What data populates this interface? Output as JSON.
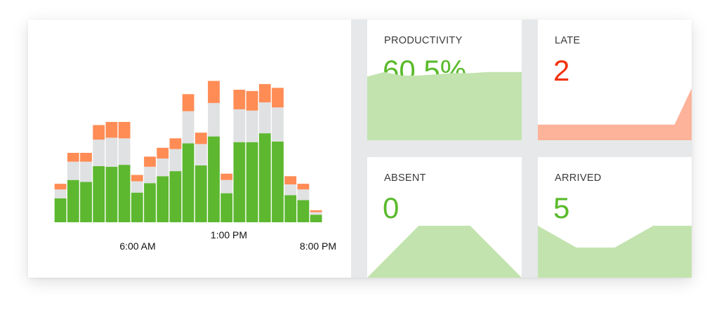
{
  "chart_data": {
    "type": "bar",
    "stacked": true,
    "x_tick_labels": [
      "6:00 AM",
      "1:00 PM",
      "8:00 PM"
    ],
    "series": [
      {
        "color": "#5db830",
        "values": [
          38,
          67,
          64,
          89,
          88,
          91,
          47,
          62,
          73,
          81,
          125,
          90,
          136,
          46,
          127,
          127,
          141,
          128,
          43,
          35,
          12
        ]
      },
      {
        "color": "#e0e1e2",
        "values": [
          14,
          29,
          32,
          42,
          46,
          42,
          18,
          26,
          28,
          35,
          51,
          34,
          53,
          21,
          52,
          50,
          49,
          54,
          17,
          17,
          4
        ]
      },
      {
        "color": "#ff8c55",
        "values": [
          9,
          14,
          14,
          23,
          25,
          26,
          10,
          16,
          17,
          17,
          27,
          18,
          35,
          10,
          31,
          31,
          29,
          31,
          13,
          9,
          3
        ]
      }
    ],
    "colors": {
      "green": "#5db830",
      "gray": "#e0e1e2",
      "orange": "#ff8c55"
    }
  },
  "stats": {
    "productivity": {
      "label": "PRODUCTIVITY",
      "value": "60.5%",
      "color": "#5aba2c",
      "area_color": "#c2e3ae",
      "trend": [
        0.56,
        0.6,
        0.57,
        0.57,
        0.58,
        0.59,
        0.59,
        0.6,
        0.6,
        0.6
      ]
    },
    "late": {
      "label": "LATE",
      "value": "2",
      "color": "#f2320e",
      "area_color": "#fdb29a",
      "trend": [
        0.3,
        0.3,
        0.3,
        0.3,
        0.3,
        0.3,
        0.3,
        0.3,
        0.3,
        1.0
      ]
    },
    "absent": {
      "label": "ABSENT",
      "value": "0",
      "color": "#5aba2c",
      "area_color": "#c2e3ae",
      "trend": [
        0.0,
        1.0,
        1.0,
        0.0
      ]
    },
    "arrived": {
      "label": "ARRIVED",
      "value": "5",
      "color": "#5aba2c",
      "area_color": "#c2e3ae",
      "trend": [
        1.0,
        0.58,
        0.58,
        1.0,
        1.0
      ]
    }
  }
}
